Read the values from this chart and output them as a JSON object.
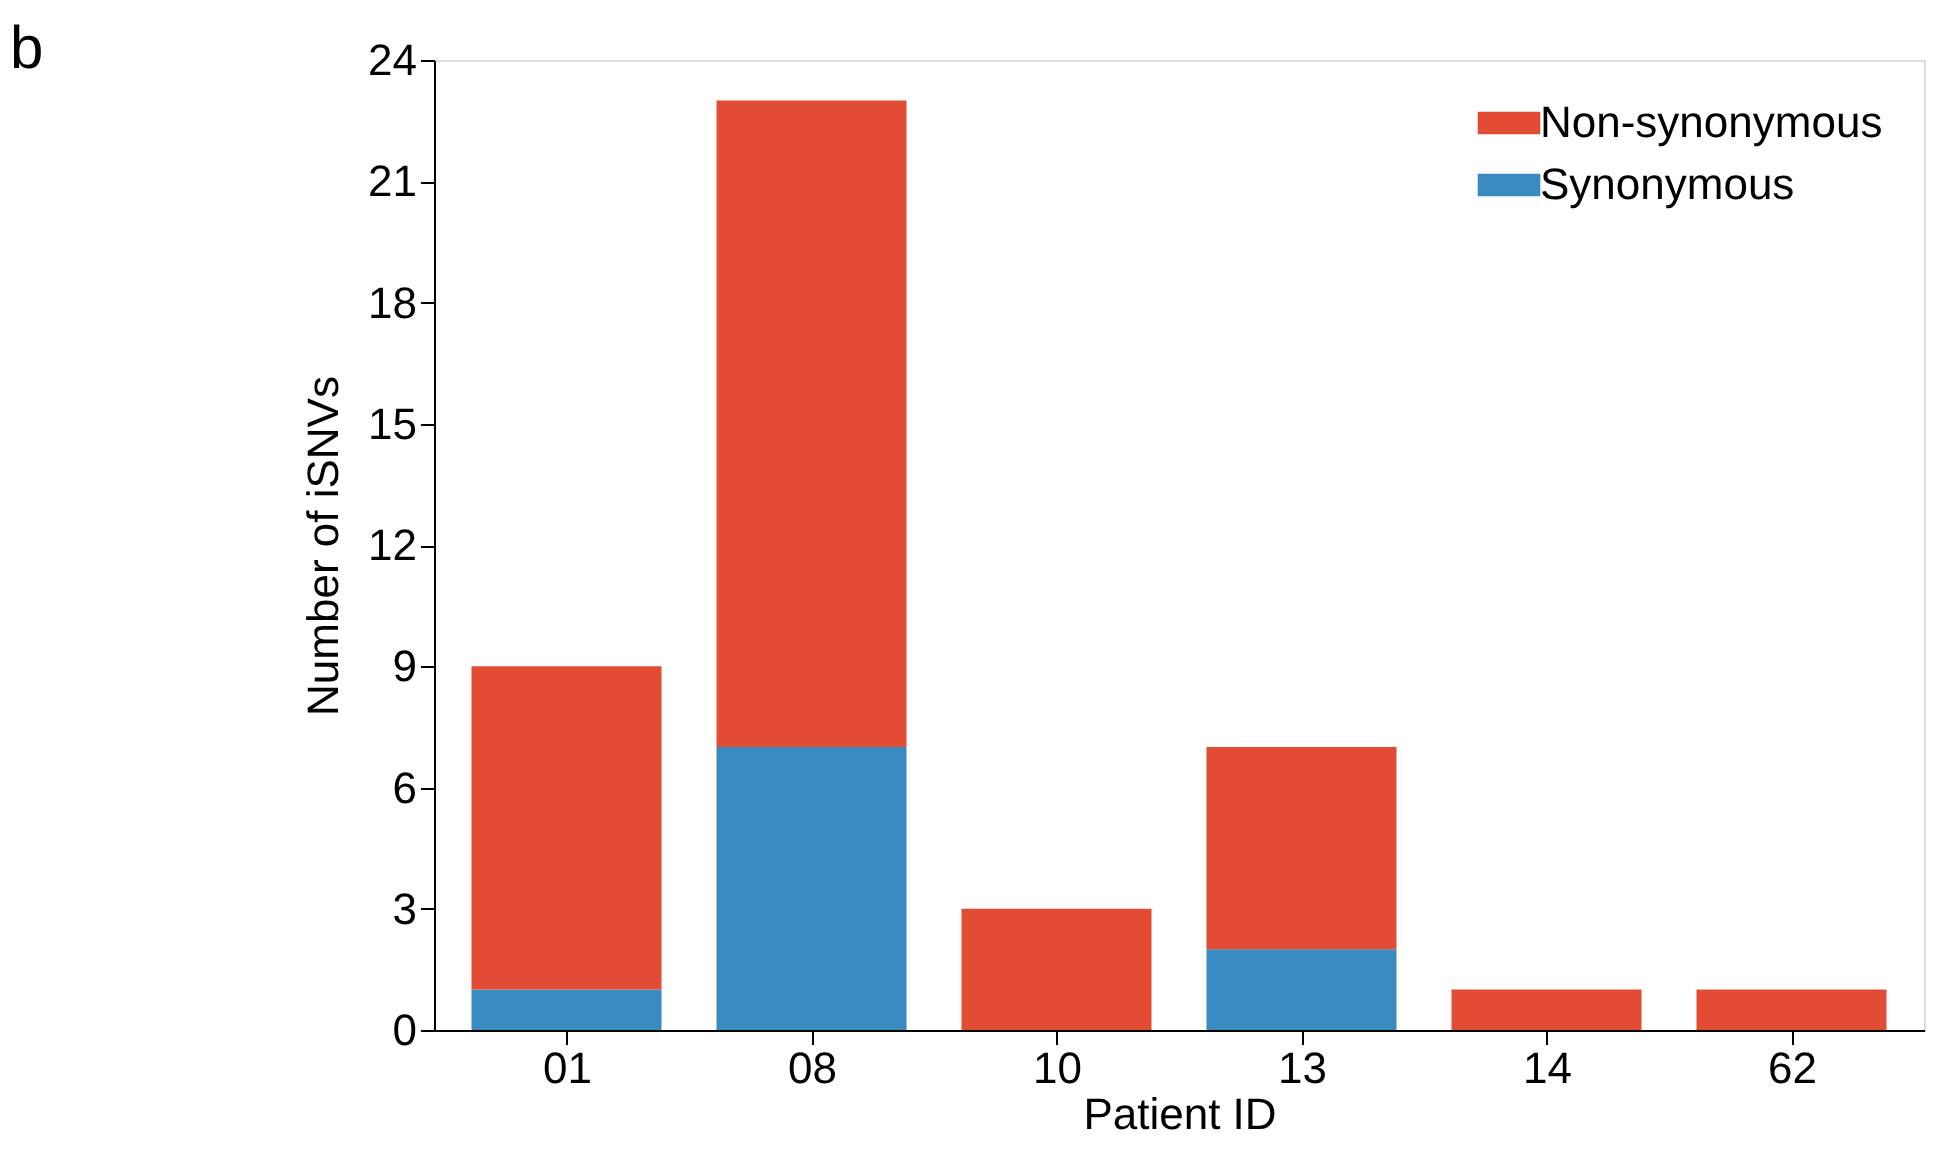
{
  "chart_data": {
    "type": "bar",
    "stacked": true,
    "xlabel": "Patient ID",
    "ylabel": "Number of iSNVs",
    "annotations": [
      "b"
    ],
    "categories": [
      "01",
      "08",
      "10",
      "13",
      "14",
      "62"
    ],
    "series": [
      {
        "name": "Synonymous",
        "color": "#388ac0",
        "values": [
          1,
          7,
          0,
          2,
          0,
          0
        ]
      },
      {
        "name": "Non-synonymous",
        "color": "#e34c34",
        "values": [
          8,
          16,
          3,
          5,
          1,
          1
        ]
      }
    ],
    "ylim": [
      0,
      24
    ],
    "yticks": [
      0,
      3,
      6,
      9,
      12,
      15,
      18,
      21,
      24
    ],
    "grid": false,
    "legend": "top right"
  }
}
